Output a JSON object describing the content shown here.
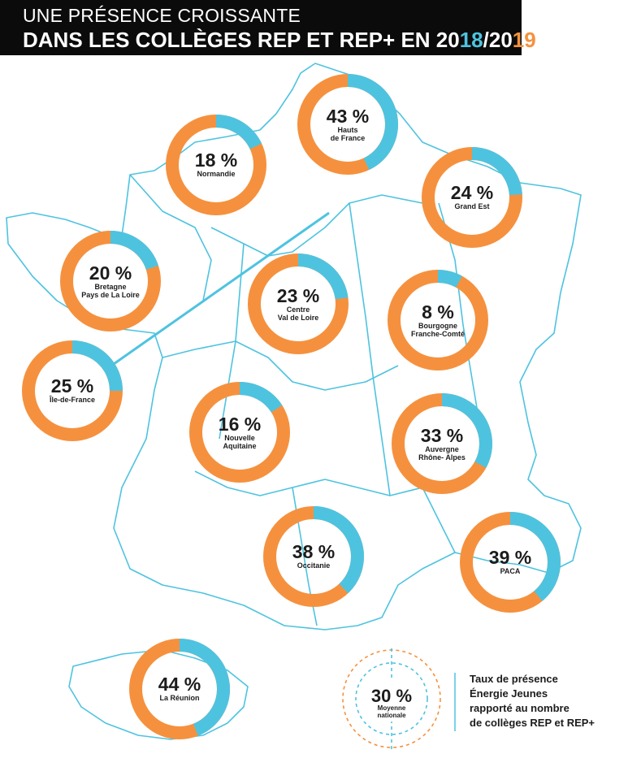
{
  "header": {
    "line1": "UNE PRÉSENCE CROISSANTE",
    "line2_prefix": "DANS LES COLLÈGES REP ET REP+ EN 20",
    "year_a_blue": "18",
    "year_sep": "/20",
    "year_b_orange": "19"
  },
  "colors": {
    "orange": "#f5913e",
    "blue": "#4ec3e0",
    "map_lines": "#4ec3e0",
    "header_bg": "#0b0b0b"
  },
  "chart_data": {
    "type": "pie",
    "unit": "%",
    "regions": [
      {
        "id": "normandie",
        "value": 18,
        "pct_label": "18 %",
        "label_lines": [
          "Normandie"
        ]
      },
      {
        "id": "hauts-de-france",
        "value": 43,
        "pct_label": "43 %",
        "label_lines": [
          "Hauts",
          "de France"
        ]
      },
      {
        "id": "grand-est",
        "value": 24,
        "pct_label": "24 %",
        "label_lines": [
          "Grand Est"
        ]
      },
      {
        "id": "bretagne",
        "value": 20,
        "pct_label": "20 %",
        "label_lines": [
          "Bretagne",
          "Pays de La Loire"
        ]
      },
      {
        "id": "centre",
        "value": 23,
        "pct_label": "23 %",
        "label_lines": [
          "Centre",
          "Val de Loire"
        ]
      },
      {
        "id": "bourgogne",
        "value": 8,
        "pct_label": "8 %",
        "label_lines": [
          "Bourgogne",
          "Franche-Comté"
        ]
      },
      {
        "id": "ile-de-france",
        "value": 25,
        "pct_label": "25 %",
        "label_lines": [
          "Île-de-France"
        ]
      },
      {
        "id": "nouvelle-aquitaine",
        "value": 16,
        "pct_label": "16 %",
        "label_lines": [
          "Nouvelle",
          "Aquitaine"
        ]
      },
      {
        "id": "auvergne",
        "value": 33,
        "pct_label": "33 %",
        "label_lines": [
          "Auvergne",
          "Rhône- Alpes"
        ]
      },
      {
        "id": "occitanie",
        "value": 38,
        "pct_label": "38 %",
        "label_lines": [
          "Occitanie"
        ]
      },
      {
        "id": "paca",
        "value": 39,
        "pct_label": "39 %",
        "label_lines": [
          "PACA"
        ]
      },
      {
        "id": "la-reunion",
        "value": 44,
        "pct_label": "44 %",
        "label_lines": [
          "La Réunion"
        ]
      }
    ],
    "national_average": {
      "value": 30,
      "pct_label": "30 %",
      "label_lines": [
        "Moyenne",
        "nationale"
      ]
    }
  },
  "legend": {
    "lines": [
      "Taux de présence",
      "Énergie Jeunes",
      "rapporté au nombre",
      "de collèges REP et REP+"
    ]
  }
}
